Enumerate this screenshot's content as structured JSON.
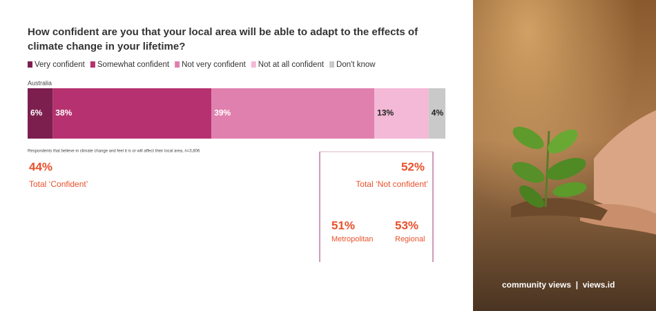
{
  "chart_data": {
    "type": "stacked-bar-horizontal",
    "title": [
      "How confident are you that your local area will be able to adapt to the effects of",
      "climate change in your lifetime?"
    ],
    "categories": [
      "Australia"
    ],
    "series": [
      {
        "name": "Very confident",
        "color": "#7c1f4f",
        "label_color": "#ffffff",
        "values": [
          6
        ],
        "value_labels": [
          "6%"
        ]
      },
      {
        "name": "Somewhat confident",
        "color": "#b6316f",
        "label_color": "#ffffff",
        "values": [
          38
        ],
        "value_labels": [
          "38%"
        ]
      },
      {
        "name": "Not very confident",
        "color": "#e080ae",
        "label_color": "#ffffff",
        "values": [
          39
        ],
        "value_labels": [
          "39%"
        ]
      },
      {
        "name": "Not at all confident",
        "color": "#f3b9d6",
        "label_color": "#222222",
        "values": [
          13
        ],
        "value_labels": [
          "13%"
        ]
      },
      {
        "name": "Don't know",
        "color": "#c9c9c9",
        "label_color": "#222222",
        "values": [
          4
        ],
        "value_labels": [
          "4%"
        ]
      }
    ],
    "note": "Respondents that believe in climate change and feel it is or will affect their local area, n=3,806",
    "annotations": [
      "44%",
      "Total ‘Confident’",
      "52%",
      "Total ‘Not confident’",
      "51%",
      "Metropolitan",
      "53%",
      "Regional"
    ],
    "footer": "community views  |  views.id"
  }
}
